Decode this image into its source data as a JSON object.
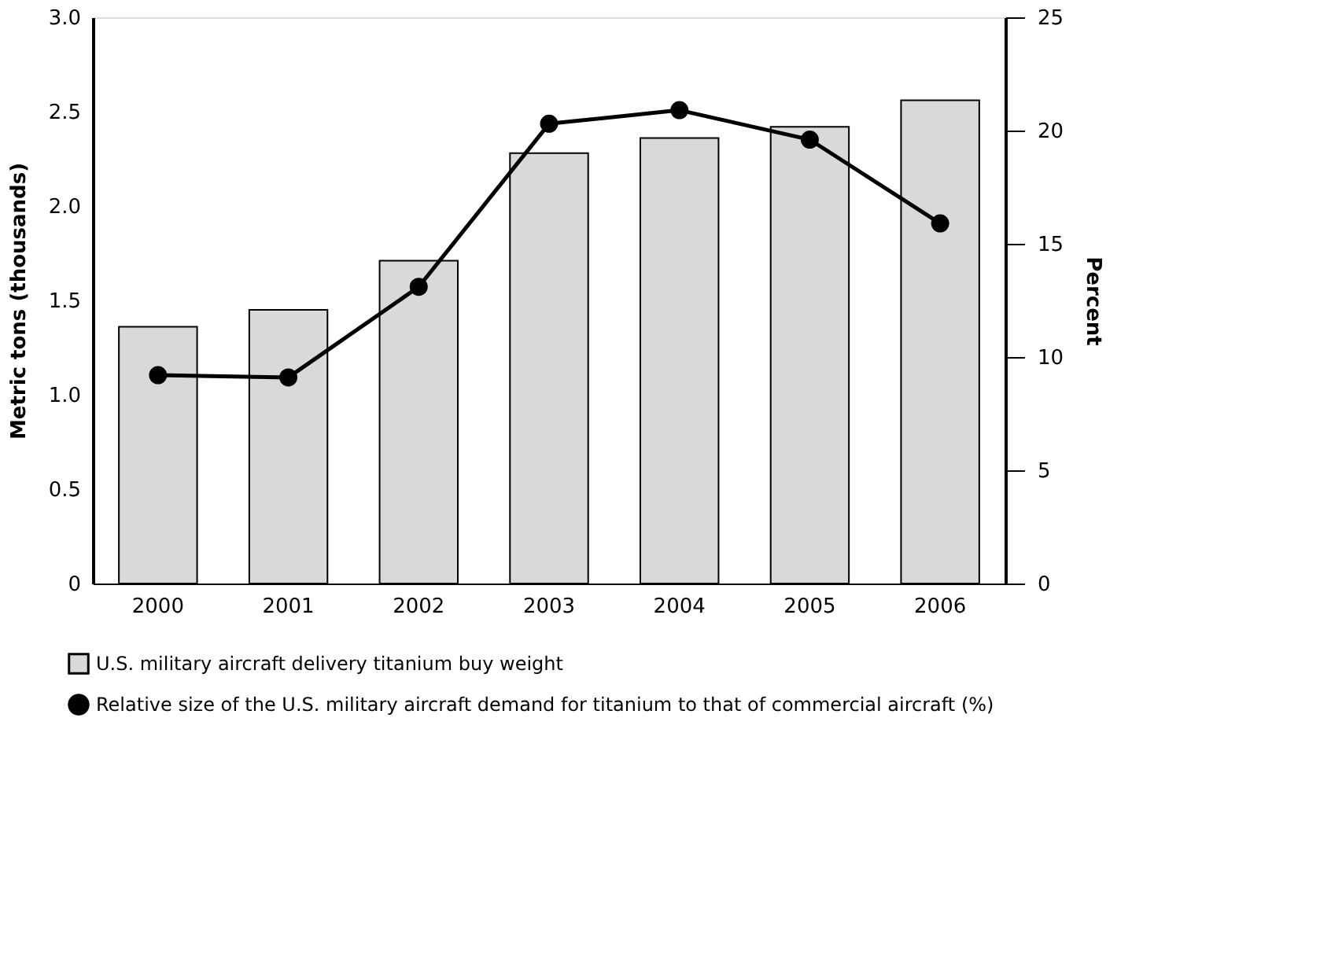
{
  "chart_data": {
    "type": "bar",
    "categories": [
      "2000",
      "2001",
      "2002",
      "2003",
      "2004",
      "2005",
      "2006"
    ],
    "ylabel": "Metric tons (thousands)",
    "y2label": "Percent",
    "ylim": [
      0,
      3.0
    ],
    "yticks": [
      0,
      0.5,
      {
        "value": 1,
        "label": "1.0"
      },
      1.5,
      {
        "value": 2,
        "label": "2.0"
      },
      2.5,
      {
        "value": 3,
        "label": "3.0"
      }
    ],
    "y2lim": [
      0,
      25
    ],
    "y2ticks": [
      0,
      5,
      10,
      15,
      20,
      25
    ],
    "series": [
      {
        "name": "U.S. military aircraft delivery titanium buy weight",
        "color": "#d9d9d9",
        "values": [
          1.36,
          1.45,
          1.71,
          2.28,
          2.36,
          2.42,
          2.56
        ]
      },
      {
        "name": "Relative size of the U.S. military aircraft demand for titanium to that of commercial aircraft (%)",
        "type": "line",
        "axis": "y2",
        "color": "#000000",
        "marker": "circle",
        "values": [
          9.2,
          9.1,
          13.1,
          20.3,
          20.9,
          19.6,
          15.9
        ]
      }
    ],
    "grid": false,
    "legend": "bottom"
  }
}
